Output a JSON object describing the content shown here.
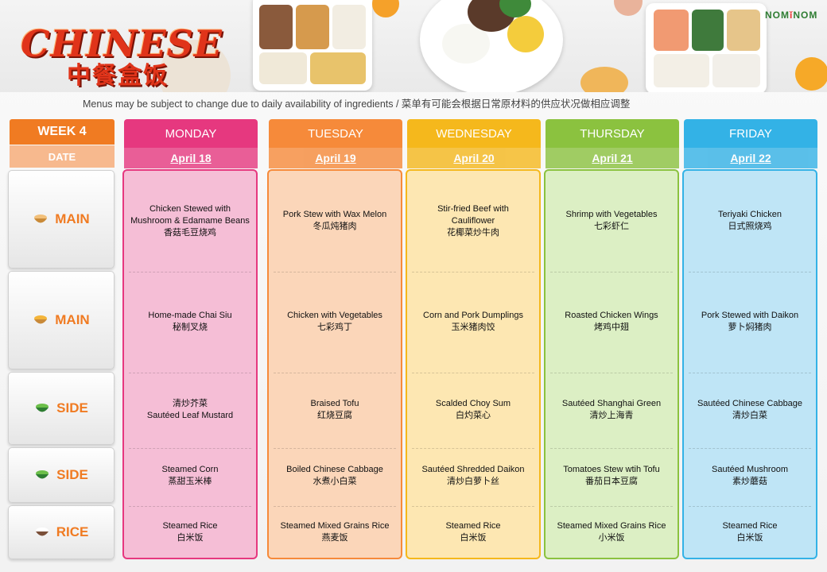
{
  "brand": {
    "left": "NOM",
    "right": "NOM"
  },
  "logo": {
    "main": "CHINESE",
    "sub": "中餐盒饭"
  },
  "notice": "Menus may be subject to change due to daily availability  of ingredients / 菜单有可能会根据日常原材料的供应状况做相应调整",
  "week_label": "WEEK 4",
  "date_label": "DATE",
  "rows": [
    {
      "label": "MAIN",
      "icon": "curry-bowl-icon"
    },
    {
      "label": "MAIN",
      "icon": "fries-bowl-icon"
    },
    {
      "label": "SIDE",
      "icon": "vegetable-bowl-icon"
    },
    {
      "label": "SIDE",
      "icon": "vegetable-bowl-icon"
    },
    {
      "label": "RICE",
      "icon": "rice-bowl-icon"
    }
  ],
  "days": [
    {
      "name": "MONDAY",
      "date": "April 18",
      "color": "#e6387f",
      "light": "#f5bed6",
      "dishes": [
        [
          "Chicken Stewed with",
          "Mushroom & Edamame Beans",
          "香菇毛豆烧鸡"
        ],
        [
          "Home-made Chai  Siu",
          "秘制叉烧"
        ],
        [
          "清炒芥菜",
          "Sautéed Leaf Mustard"
        ],
        [
          "Steamed Corn",
          "蒸甜玉米棒"
        ],
        [
          "Steamed Rice",
          "白米饭"
        ]
      ]
    },
    {
      "name": "TUESDAY",
      "date": "April 19",
      "color": "#f68a3a",
      "light": "#fbd6b9",
      "dishes": [
        [
          "Pork Stew with Wax Melon",
          "冬瓜炖猪肉"
        ],
        [
          "Chicken with Vegetables",
          "七彩鸡丁"
        ],
        [
          "Braised Tofu",
          "红烧豆腐"
        ],
        [
          "Boiled Chinese Cabbage",
          "水煮小白菜"
        ],
        [
          "Steamed Mixed Grains Rice",
          "燕麦饭"
        ]
      ]
    },
    {
      "name": "WEDNESDAY",
      "date": "April 20",
      "color": "#f5b81c",
      "light": "#fde7b2",
      "dishes": [
        [
          "Stir-fried Beef with",
          "Cauliflower",
          "花椰菜炒牛肉"
        ],
        [
          "Corn and Pork Dumplings",
          "玉米猪肉饺"
        ],
        [
          "Scalded Choy Sum",
          "白灼菜心"
        ],
        [
          "Sautéed  Shredded Daikon",
          "清炒白萝卜丝"
        ],
        [
          "Steamed Rice",
          "白米饭"
        ]
      ]
    },
    {
      "name": "THURSDAY",
      "date": "April 21",
      "color": "#8bc23f",
      "light": "#dcefc4",
      "dishes": [
        [
          "Shrimp with Vegetables",
          "七彩虾仁"
        ],
        [
          "Roasted Chicken Wings",
          "烤鸡中翅"
        ],
        [
          "Sautéed Shanghai Green",
          "清炒上海青"
        ],
        [
          "Tomatoes Stew wtih Tofu",
          "番茄日本豆腐"
        ],
        [
          "Steamed Mixed Grains Rice",
          "小米饭"
        ]
      ]
    },
    {
      "name": "FRIDAY",
      "date": "April 22",
      "color": "#33b2e6",
      "light": "#bfe5f6",
      "dishes": [
        [
          "Teriyaki Chicken",
          "日式照烧鸡"
        ],
        [
          "Pork Stewed with Daikon",
          "萝卜焖猪肉"
        ],
        [
          "Sautéed Chinese Cabbage",
          "清炒白菜"
        ],
        [
          "Sautéed Mushroom",
          "素炒蘑菇"
        ],
        [
          "Steamed Rice",
          "白米饭"
        ]
      ]
    }
  ]
}
